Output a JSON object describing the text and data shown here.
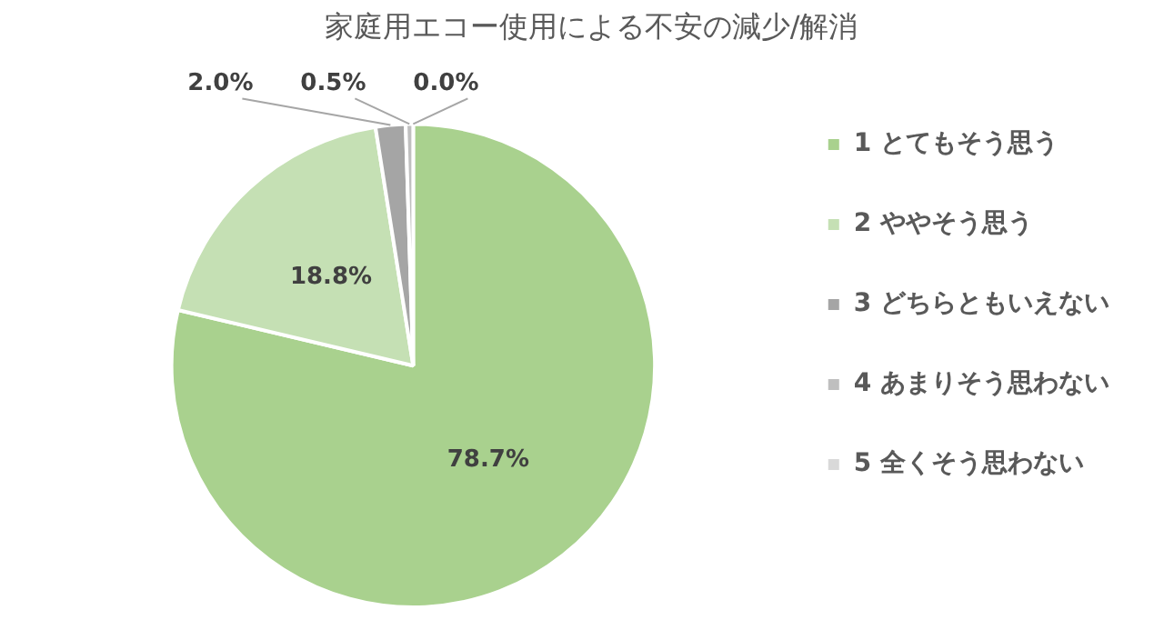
{
  "chart_data": {
    "type": "pie",
    "title": "家庭用エコー使用による不安の減少/解消",
    "categories": [
      "1 とてもそう思う",
      "2 ややそう思う",
      "3 どちらともいえない",
      "4 あまりそう思わない",
      "5 全くそう思わない"
    ],
    "values": [
      78.7,
      18.8,
      2.0,
      0.5,
      0.0
    ],
    "colors": [
      "#a9d18e",
      "#c5e0b4",
      "#a5a5a5",
      "#bfbfbf",
      "#d9d9d9"
    ],
    "value_labels": [
      "78.7%",
      "18.8%",
      "2.0%",
      "0.5%",
      "0.0%"
    ],
    "legend": "right"
  }
}
